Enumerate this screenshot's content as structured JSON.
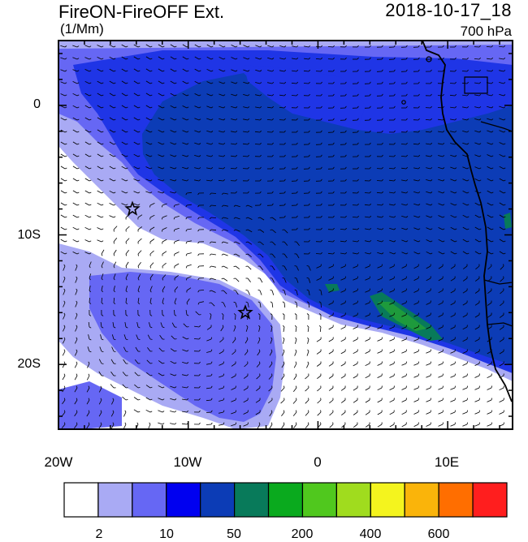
{
  "header": {
    "title": "FireON-FireOFF Ext.",
    "datetime": "2018-10-17_18",
    "units": "(1/Mm)",
    "level": "700 hPa"
  },
  "axes": {
    "lat_labels": [
      "0",
      "10S",
      "20S"
    ],
    "lon_labels": [
      "20W",
      "10W",
      "0",
      "10E"
    ],
    "lat_range": [
      -25,
      5
    ],
    "lon_range": [
      -20,
      15
    ]
  },
  "colorbar": {
    "labels": [
      "2",
      "10",
      "50",
      "200",
      "400",
      "600"
    ],
    "colors": [
      "#ffffff",
      "#a9aaf4",
      "#6667f4",
      "#0000f0",
      "#0c3cb6",
      "#087a5a",
      "#0aaa1e",
      "#50c81e",
      "#a0dc1e",
      "#f4f41e",
      "#fab40a",
      "#ff6e00",
      "#ff1e1e"
    ]
  },
  "markers": [
    {
      "name": "star",
      "lon": -14.3,
      "lat": -8
    },
    {
      "name": "star",
      "lon": -5.6,
      "lat": -16
    }
  ],
  "fill_colors": {
    "white": "#ffffff",
    "light": "#a9aaf4",
    "medium": "#6667f4",
    "blue": "#1f35e6",
    "dark": "#0c3cb6",
    "teal": "#087a5a",
    "green": "#1e9a3c"
  }
}
